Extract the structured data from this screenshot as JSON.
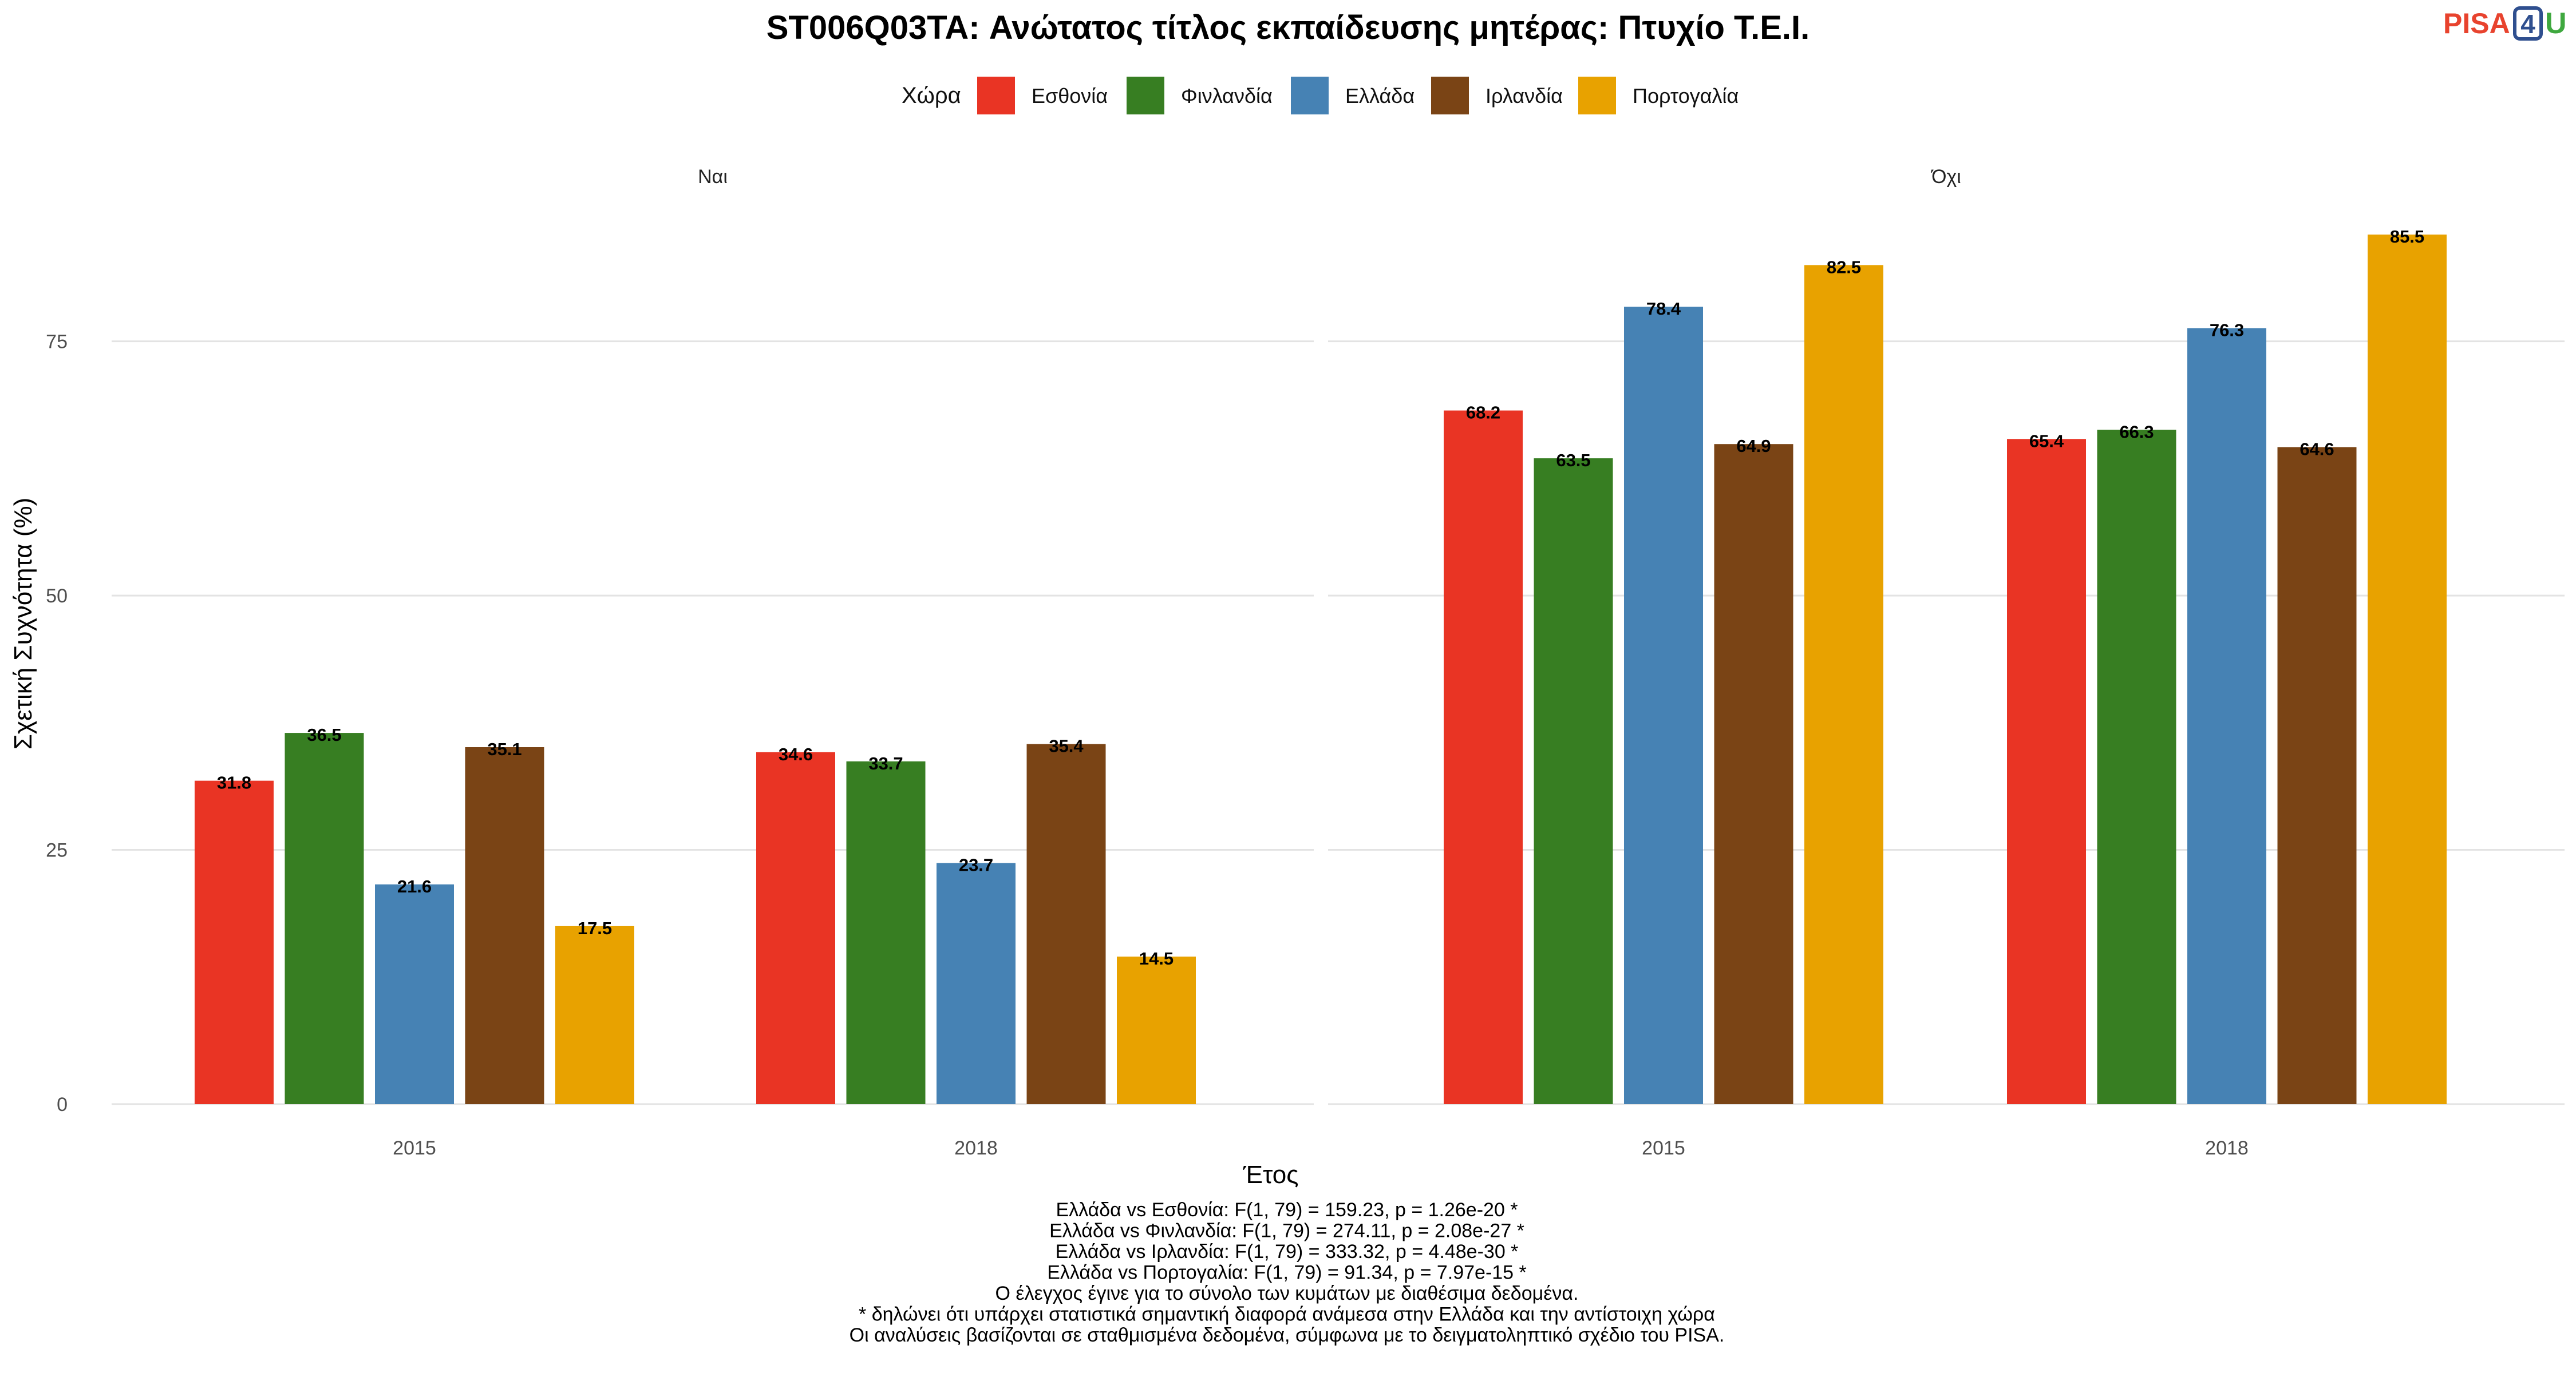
{
  "title": "ST006Q03TA: Ανώτατος τίτλος εκπαίδευσης μητέρας: Πτυχίο Τ.Ε.Ι.",
  "logo": {
    "text_pisa": "PISA",
    "text_4": "4",
    "text_u": "U",
    "color_pisa": "#e8432e",
    "color_4": "#2f4f8f",
    "color_u": "#3fa83f"
  },
  "legend": {
    "title": "Χώρα",
    "items": [
      {
        "name": "Εσθονία",
        "color": "#E93424"
      },
      {
        "name": "Φινλανδία",
        "color": "#377E22"
      },
      {
        "name": "Ελλάδα",
        "color": "#4682B4"
      },
      {
        "name": "Ιρλανδία",
        "color": "#7A4415"
      },
      {
        "name": "Πορτογαλία",
        "color": "#E8A200"
      }
    ]
  },
  "chart_data": {
    "type": "bar",
    "xlabel": "Έτος",
    "ylabel": "Σχετική Συχνότητα (%)",
    "ylim": [
      0,
      90
    ],
    "yticks": [
      0,
      25,
      50,
      75
    ],
    "grid": true,
    "legend_position": "top",
    "panels": [
      {
        "name": "Ναι",
        "categories": [
          "2015",
          "2018"
        ],
        "series": [
          {
            "name": "Εσθονία",
            "values": [
              31.8,
              34.6
            ]
          },
          {
            "name": "Φινλανδία",
            "values": [
              36.5,
              33.7
            ]
          },
          {
            "name": "Ελλάδα",
            "values": [
              21.6,
              23.7
            ]
          },
          {
            "name": "Ιρλανδία",
            "values": [
              35.1,
              35.4
            ]
          },
          {
            "name": "Πορτογαλία",
            "values": [
              17.5,
              14.5
            ]
          }
        ]
      },
      {
        "name": "Όχι",
        "categories": [
          "2015",
          "2018"
        ],
        "series": [
          {
            "name": "Εσθονία",
            "values": [
              68.2,
              65.4
            ]
          },
          {
            "name": "Φινλανδία",
            "values": [
              63.5,
              66.3
            ]
          },
          {
            "name": "Ελλάδα",
            "values": [
              78.4,
              76.3
            ]
          },
          {
            "name": "Ιρλανδία",
            "values": [
              64.9,
              64.6
            ]
          },
          {
            "name": "Πορτογαλία",
            "values": [
              82.5,
              85.5
            ]
          }
        ]
      }
    ]
  },
  "caption_lines": [
    "Ελλάδα vs Εσθονία: F(1, 79) = 159.23, p = 1.26e-20 *",
    "Ελλάδα vs Φινλανδία: F(1, 79) = 274.11, p = 2.08e-27 *",
    "Ελλάδα vs Ιρλανδία: F(1, 79) = 333.32, p = 4.48e-30 *",
    "Ελλάδα vs Πορτογαλία: F(1, 79) = 91.34, p = 7.97e-15 *",
    "Ο έλεγχος έγινε για το σύνολο των κυμάτων με διαθέσιμα δεδομένα.",
    "* δηλώνει ότι υπάρχει στατιστικά σημαντική διαφορά ανάμεσα στην Ελλάδα και την αντίστοιχη χώρα",
    "Οι αναλύσεις βασίζονται σε σταθμισμένα δεδομένα, σύμφωνα με το δειγματοληπτικό σχέδιο του PISA."
  ]
}
